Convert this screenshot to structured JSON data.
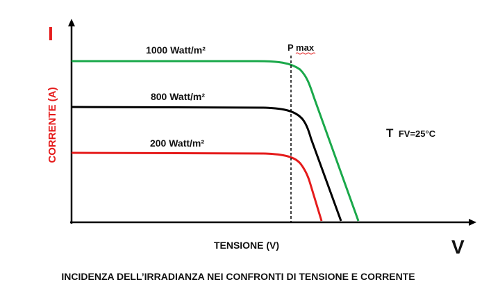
{
  "chart_data": {
    "type": "line",
    "y_axis_symbol": "I",
    "y_axis_label": "CORRENTE (A)",
    "x_axis_symbol": "V",
    "x_axis_label": "TENSIONE (V)",
    "pmax_label": "P max",
    "temperature": {
      "prefix": "T",
      "value": "FV=25°C"
    },
    "caption": "INCIDENZA DELL’IRRADIANZA NEI CONFRONTI DI TENSIONE E CORRENTE",
    "series": [
      {
        "name": "1000 Watt/m²",
        "color": "#1aa84a"
      },
      {
        "name": "800 Watt/m²",
        "color": "#000000"
      },
      {
        "name": "200 Watt/m²",
        "color": "#e51b1b"
      }
    ],
    "colors": {
      "axis": "#000000",
      "y_axis_symbol": "#e51b1b",
      "y_axis_label": "#e51b1b",
      "pmax_underline": "#e51b1b"
    }
  }
}
